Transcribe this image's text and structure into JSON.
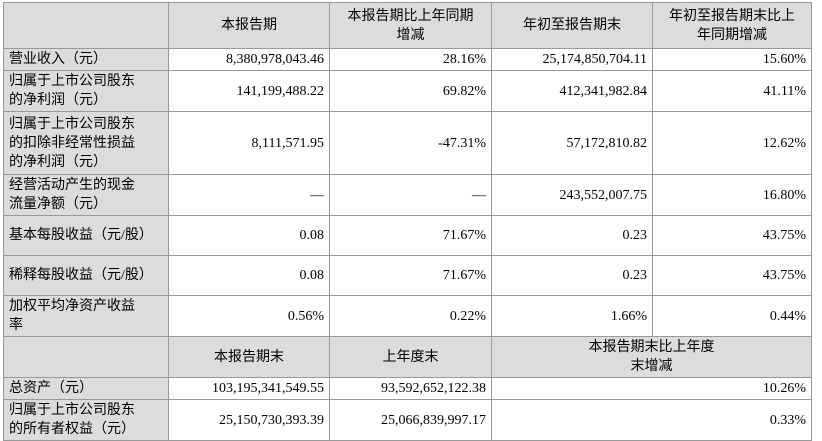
{
  "header": [
    "本报告期",
    "本报告期比上年同期增减",
    "年初至报告期末",
    "年初至报告期末比上年同期增减"
  ],
  "rows": [
    {
      "label": "营业收入（元）",
      "values": [
        "8,380,978,043.46",
        "28.16%",
        "25,174,850,704.11",
        "15.60%"
      ]
    },
    {
      "label": "归属于上市公司股东的净利润（元）",
      "values": [
        "141,199,488.22",
        "69.82%",
        "412,341,982.84",
        "41.11%"
      ]
    },
    {
      "label": "归属于上市公司股东的扣除非经常性损益的净利润（元）",
      "values": [
        "8,111,571.95",
        "-47.31%",
        "57,172,810.82",
        "12.62%"
      ]
    },
    {
      "label": "经营活动产生的现金流量净额（元）",
      "values": [
        "—",
        "—",
        "243,552,007.75",
        "16.80%"
      ]
    },
    {
      "label": "基本每股收益（元/股）",
      "values": [
        "0.08",
        "71.67%",
        "0.23",
        "43.75%"
      ]
    },
    {
      "label": "稀释每股收益（元/股）",
      "values": [
        "0.08",
        "71.67%",
        "0.23",
        "43.75%"
      ]
    },
    {
      "label": "加权平均净资产收益率",
      "values": [
        "0.56%",
        "0.22%",
        "1.66%",
        "0.44%"
      ]
    }
  ],
  "header2": [
    "本报告期末",
    "上年度末",
    "本报告期末比上年度末增减"
  ],
  "rows2": [
    {
      "label": "总资产（元）",
      "values": [
        "103,195,341,549.55",
        "93,592,652,122.38",
        "10.26%"
      ]
    },
    {
      "label": "归属于上市公司股东的所有者权益（元）",
      "values": [
        "25,150,730,393.39",
        "25,066,839,997.17",
        "0.33%"
      ]
    }
  ]
}
